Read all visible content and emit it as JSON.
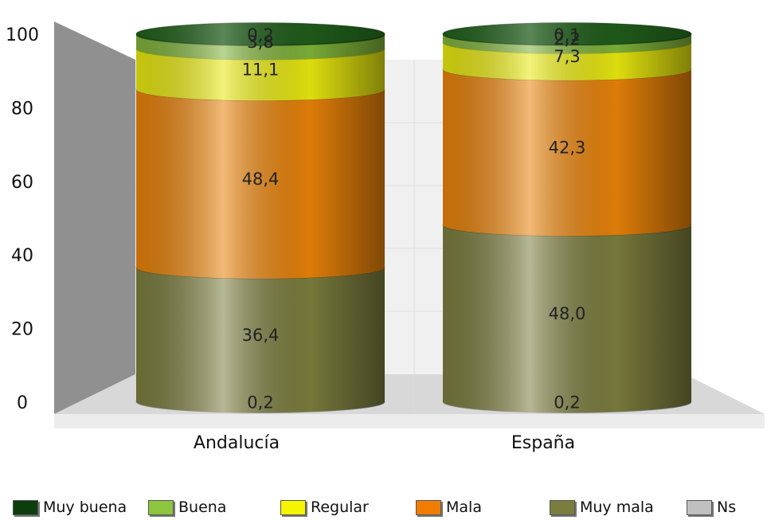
{
  "chart_data": {
    "type": "bar",
    "stacked": true,
    "categories": [
      "Andalucía",
      "España"
    ],
    "yticks": [
      "0",
      "20",
      "40",
      "60",
      "80",
      "100"
    ],
    "ylim": [
      0,
      100
    ],
    "series": [
      {
        "name": "Ns",
        "color": "#c0c0c0",
        "values": [
          0.2,
          0.2
        ],
        "labels": [
          "0,2",
          "0,2"
        ]
      },
      {
        "name": "Muy mala",
        "color": "#7b7d3e",
        "values": [
          36.4,
          48.0
        ],
        "labels": [
          "36,4",
          "48,0"
        ]
      },
      {
        "name": "Mala",
        "color": "#e8820a",
        "values": [
          48.4,
          42.3
        ],
        "labels": [
          "48,4",
          "42,3"
        ]
      },
      {
        "name": "Regular",
        "color": "#e8e810",
        "values": [
          11.1,
          7.3
        ],
        "labels": [
          "11,1",
          "7,3"
        ]
      },
      {
        "name": "Buena",
        "color": "#7fb23a",
        "values": [
          3.8,
          2.2
        ],
        "labels": [
          "3,8",
          "2,2"
        ]
      },
      {
        "name": "Muy buena",
        "color": "#1f5a1a",
        "values": [
          0.2,
          0.1
        ],
        "labels": [
          "0,2",
          "0,1"
        ]
      }
    ],
    "legend": {
      "position": "bottom",
      "order": [
        "Muy buena",
        "Buena",
        "Regular",
        "Mala",
        "Muy mala",
        "Ns"
      ],
      "colors": [
        "#0d3d0d",
        "#8cc63f",
        "#f5f500",
        "#f07d00",
        "#7b7d3e",
        "#c0c0c0"
      ]
    },
    "grid": true
  }
}
